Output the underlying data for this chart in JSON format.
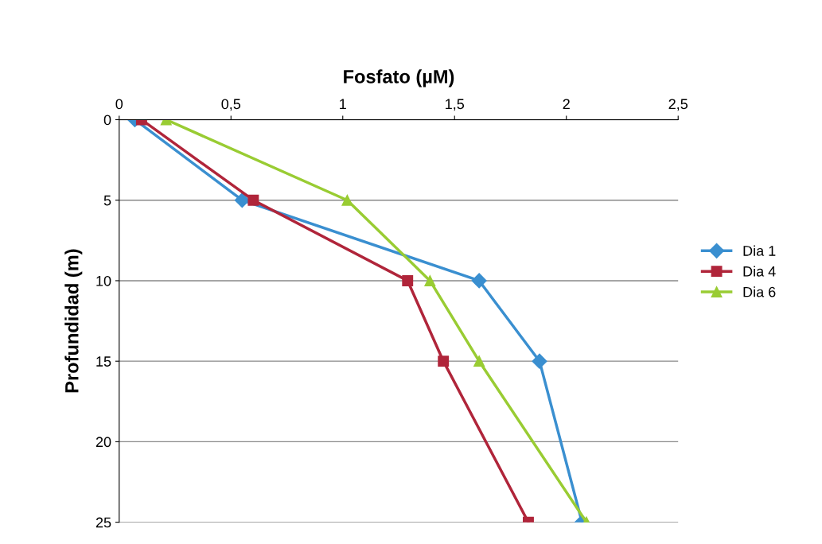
{
  "chart_data": {
    "type": "line",
    "xlabel": "Fosfato (µM)",
    "ylabel": "Profundidad (m)",
    "xlim": [
      0,
      2.5
    ],
    "xticks": [
      0,
      {
        "value": 0.5,
        "label": "0,5"
      },
      1,
      {
        "value": 1.5,
        "label": "1,5"
      },
      2,
      {
        "value": 2.5,
        "label": "2,5"
      }
    ],
    "ylim": [
      25,
      0
    ],
    "yticks": [
      0,
      5,
      10,
      15,
      20,
      25
    ],
    "grid": "y",
    "legend": "right",
    "series": [
      {
        "name": "Dia 1",
        "color": "#3a8fd0",
        "marker": "diamond",
        "x": [
          0.07,
          0.55,
          1.61,
          1.88,
          2.07
        ],
        "values": [
          0,
          5,
          10,
          15,
          25
        ]
      },
      {
        "name": "Dia 4",
        "color": "#b0253a",
        "marker": "square",
        "x": [
          0.1,
          0.6,
          1.29,
          1.45,
          1.83
        ],
        "values": [
          0,
          5,
          10,
          15,
          25
        ]
      },
      {
        "name": "Dia 6",
        "color": "#99cc33",
        "marker": "triangle",
        "x": [
          0.21,
          1.02,
          1.39,
          1.61,
          2.09
        ],
        "values": [
          0,
          5,
          10,
          15,
          25
        ]
      }
    ]
  }
}
